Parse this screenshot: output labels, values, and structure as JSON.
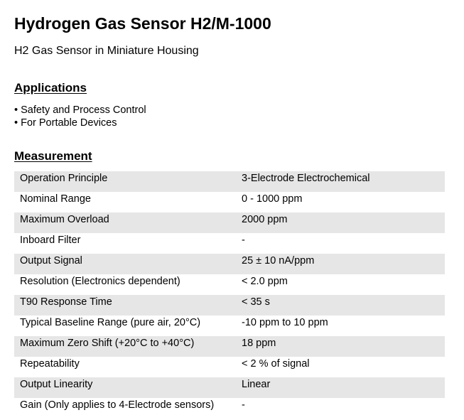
{
  "title": "Hydrogen Gas Sensor H2/M-1000",
  "subtitle": "H2 Gas Sensor in Miniature Housing",
  "applications": {
    "heading": "Applications",
    "items": [
      "• Safety and Process Control",
      "• For Portable Devices"
    ]
  },
  "measurement": {
    "heading": "Measurement",
    "rows": [
      [
        "Operation Principle",
        "3-Electrode Electrochemical"
      ],
      [
        "Nominal Range",
        "0 - 1000 ppm"
      ],
      [
        "Maximum Overload",
        "2000 ppm"
      ],
      [
        "Inboard Filter",
        "-"
      ],
      [
        "Output Signal",
        "25 ± 10 nA/ppm"
      ],
      [
        "Resolution (Electronics dependent)",
        "< 2.0 ppm"
      ],
      [
        "T90 Response Time",
        "< 35 s"
      ],
      [
        "Typical Baseline Range (pure air, 20°C)",
        "-10 ppm to 10 ppm"
      ],
      [
        "Maximum Zero Shift (+20°C to +40°C)",
        "18 ppm"
      ],
      [
        "Repeatability",
        "< 2 % of signal"
      ],
      [
        "Output Linearity",
        "Linear"
      ],
      [
        "Gain (Only applies to 4-Electrode sensors)",
        "-"
      ]
    ]
  }
}
